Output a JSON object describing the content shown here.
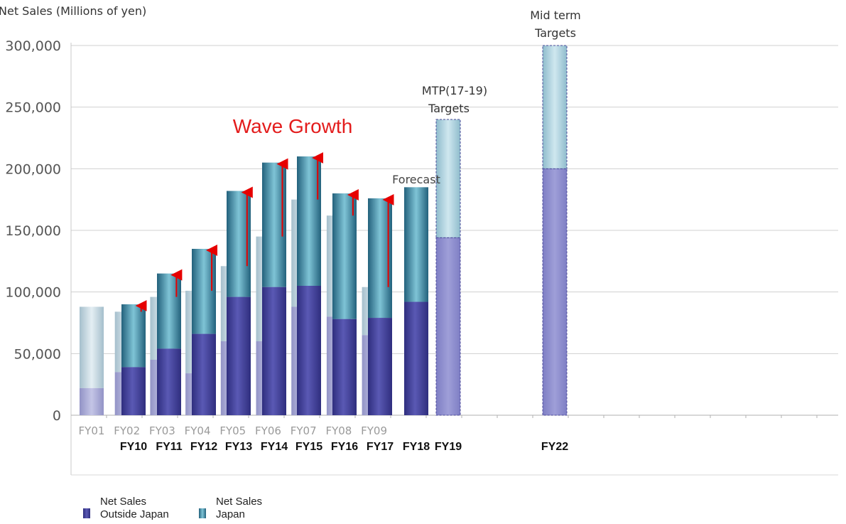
{
  "chart_data": {
    "type": "bar",
    "title": "",
    "ylabel": "Net Sales (Millions of yen)",
    "xlabel": "",
    "ylim": [
      0,
      300000
    ],
    "yticks": [
      "0",
      "50,000",
      "100,000",
      "150,000",
      "200,000",
      "250,000",
      "300,000"
    ],
    "grid": true,
    "background_series": {
      "name": "",
      "categories": [
        "FY01",
        "FY02",
        "FY03",
        "FY04",
        "FY05",
        "FY06",
        "FY07",
        "FY08",
        "FY09"
      ],
      "outside_japan": [
        22000,
        35000,
        45000,
        34000,
        60000,
        60000,
        88000,
        80000,
        65000
      ],
      "total": [
        88000,
        84000,
        96000,
        101000,
        121000,
        145000,
        175000,
        162000,
        104000
      ]
    },
    "categories": [
      "FY10",
      "FY11",
      "FY12",
      "FY13",
      "FY14",
      "FY15",
      "FY16",
      "FY17",
      "FY18",
      "FY19",
      "FY22"
    ],
    "series": [
      {
        "name": "Net Sales Outside Japan",
        "values": [
          39000,
          54000,
          66000,
          96000,
          104000,
          105000,
          78000,
          79000,
          92000,
          144000,
          200000
        ]
      },
      {
        "name": "Net Sales Japan",
        "values": [
          51000,
          61000,
          69000,
          86000,
          101000,
          105000,
          102000,
          97000,
          93000,
          96000,
          100000
        ]
      }
    ],
    "target_categories": [
      "FY19",
      "FY22"
    ],
    "annotations": {
      "wave_growth": "Wave Growth",
      "forecast": "Forecast",
      "mtp_line1": "MTP(17-19)",
      "mtp_line2": "Targets",
      "mid_line1": "Mid term",
      "mid_line2": "Targets"
    },
    "legend": {
      "position": "bottom-left",
      "outside_label_1": "Net Sales",
      "outside_label_2": "Outside Japan",
      "japan_label_1": "Net Sales",
      "japan_label_2": "Japan"
    },
    "colors": {
      "outside": "#4b4aa0",
      "japan": "#3a7f9a",
      "outside_light": "#a8a9d2",
      "japan_light": "#c2d6e0",
      "target_outside": "#8c8ccc",
      "target_japan": "#a9cfdc",
      "arrow": "#e60000",
      "wave_text": "#e31c1c",
      "grid": "#d0d0d0"
    }
  }
}
